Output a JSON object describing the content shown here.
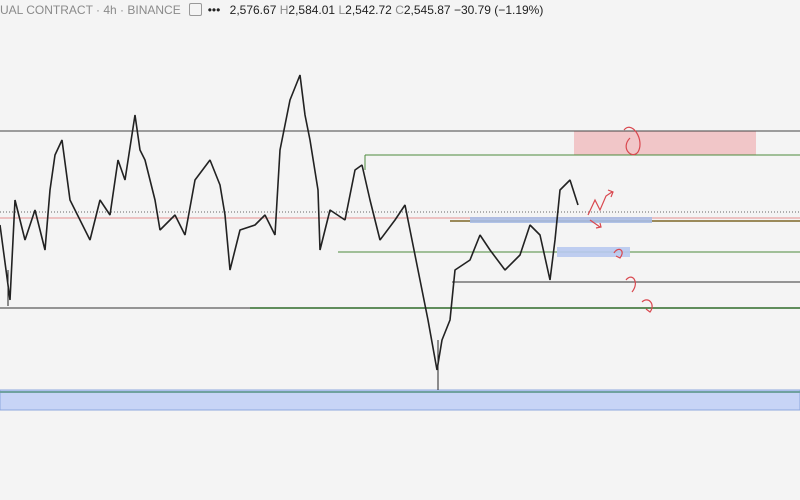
{
  "header": {
    "symbol": "UAL CONTRACT · 4h · BINANCE",
    "open": "2,576.67",
    "high_label": "H",
    "high": "2,584.01",
    "low_label": "L",
    "low": "2,542.72",
    "close_label": "C",
    "close": "2,545.87",
    "change": "−30.79 (−1.19%)"
  }
}
